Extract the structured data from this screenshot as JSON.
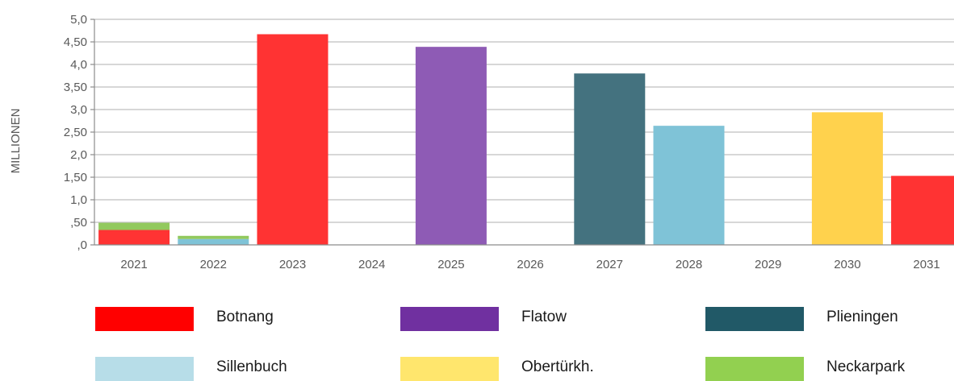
{
  "chart_data": {
    "type": "bar",
    "stacked": true,
    "title": "",
    "xlabel": "",
    "ylabel": "MILLIONEN",
    "ylim": [
      0,
      5.0
    ],
    "grid": true,
    "legend_position": "bottom",
    "y_ticks": [
      ",0",
      ",50",
      "1,0",
      "1,50",
      "2,0",
      "2,50",
      "3,0",
      "3,50",
      "4,0",
      "4,50",
      "5,0"
    ],
    "categories": [
      "2021",
      "2022",
      "2023",
      "2024",
      "2025",
      "2026",
      "2027",
      "2028",
      "2029",
      "2030",
      "2031"
    ],
    "series": [
      {
        "name": "Botnang",
        "color": "#FF3333",
        "values": [
          0.33,
          0,
          4.67,
          0,
          0,
          0,
          0,
          0,
          0,
          0,
          1.53
        ]
      },
      {
        "name": "Flatow",
        "color": "#8E5BB5",
        "values": [
          0,
          0,
          0,
          0,
          4.39,
          0,
          0,
          0,
          0,
          0,
          0
        ]
      },
      {
        "name": "Plieningen",
        "color": "#44727F",
        "values": [
          0,
          0,
          0,
          0,
          0,
          0,
          3.8,
          0,
          0,
          0,
          0
        ]
      },
      {
        "name": "Sillenbuch",
        "color": "#7FC3D7",
        "values": [
          0,
          0.13,
          0,
          0,
          0,
          0,
          0,
          2.64,
          0,
          0,
          0
        ]
      },
      {
        "name": "Obertürkh.",
        "color": "#FFD24D",
        "values": [
          0,
          0,
          0,
          0,
          0,
          0,
          0,
          0,
          0,
          2.94,
          0
        ]
      },
      {
        "name": "Neckarpark",
        "color": "#92C95E",
        "values": [
          0.16,
          0.07,
          0,
          0,
          0,
          0,
          0,
          0,
          0,
          0,
          0
        ]
      }
    ]
  },
  "legend": {
    "items": [
      {
        "name": "Botnang",
        "color": "#FF0000"
      },
      {
        "name": "Flatow",
        "color": "#7030A0"
      },
      {
        "name": "Plieningen",
        "color": "#215967"
      },
      {
        "name": "Sillenbuch",
        "color": "#B7DDE8"
      },
      {
        "name": "Obertürkh.",
        "color": "#FFE66D"
      },
      {
        "name": "Neckarpark",
        "color": "#92D050"
      }
    ]
  }
}
